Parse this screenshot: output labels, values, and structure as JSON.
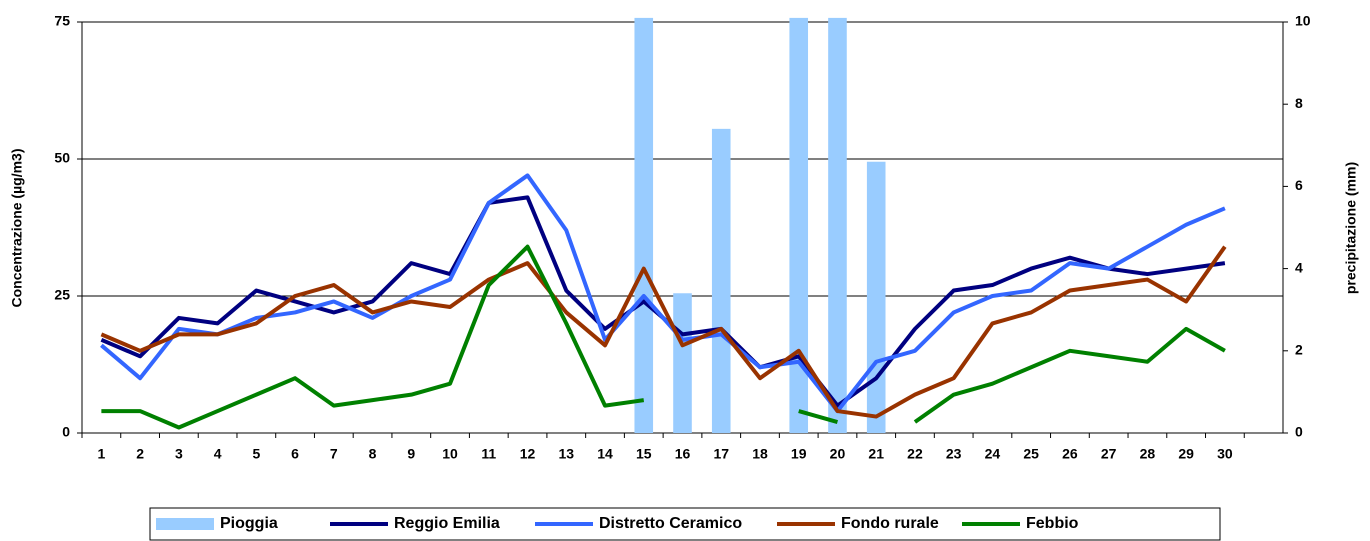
{
  "chart_data": {
    "type": "combo",
    "categories": [
      "1",
      "2",
      "3",
      "4",
      "5",
      "6",
      "7",
      "8",
      "9",
      "10",
      "11",
      "12",
      "13",
      "14",
      "15",
      "16",
      "17",
      "18",
      "19",
      "20",
      "21",
      "22",
      "23",
      "24",
      "25",
      "26",
      "27",
      "28",
      "29",
      "30",
      null
    ],
    "ylabel": "Concentrazione (µg/m3)",
    "y2label": "precipitazione (mm)",
    "ylim": [
      0,
      75
    ],
    "yticks": [
      0,
      25,
      50,
      75
    ],
    "y2lim": [
      0,
      10
    ],
    "y2ticks": [
      0,
      2,
      4,
      6,
      8,
      10
    ],
    "grid": true,
    "legend": "bottom",
    "series": [
      {
        "name": "Pioggia",
        "type": "bar",
        "axis": "y2",
        "color": "#99ccff",
        "values": [
          null,
          null,
          null,
          null,
          null,
          null,
          null,
          null,
          null,
          null,
          null,
          null,
          null,
          null,
          10.1,
          3.4,
          7.4,
          null,
          10.1,
          10.1,
          6.6,
          null,
          null,
          null,
          null,
          null,
          null,
          null,
          null,
          null,
          null
        ]
      },
      {
        "name": "Reggio Emilia",
        "type": "line",
        "color": "#000080",
        "values": [
          17,
          14,
          21,
          20,
          26,
          24,
          22,
          24,
          31,
          29,
          42,
          43,
          26,
          19,
          24,
          18,
          19,
          12,
          14,
          5,
          10,
          19,
          26,
          27,
          30,
          32,
          30,
          29,
          30,
          31,
          null
        ]
      },
      {
        "name": "Distretto Ceramico",
        "type": "line",
        "color": "#3366ff",
        "values": [
          16,
          10,
          19,
          18,
          21,
          22,
          24,
          21,
          25,
          28,
          42,
          47,
          37,
          17,
          25,
          17,
          18,
          12,
          13,
          4,
          13,
          15,
          22,
          25,
          26,
          31,
          30,
          34,
          38,
          41,
          null
        ]
      },
      {
        "name": "Fondo rurale",
        "type": "line",
        "color": "#993300",
        "values": [
          18,
          15,
          18,
          18,
          20,
          25,
          27,
          22,
          24,
          23,
          28,
          31,
          22,
          16,
          30,
          16,
          19,
          10,
          15,
          4,
          3,
          7,
          10,
          20,
          22,
          26,
          27,
          28,
          24,
          34,
          null
        ]
      },
      {
        "name": "Febbio",
        "type": "line",
        "color": "#008000",
        "values": [
          4,
          4,
          1,
          4,
          7,
          10,
          5,
          6,
          7,
          9,
          27,
          34,
          20,
          5,
          6,
          null,
          null,
          null,
          4,
          2,
          null,
          2,
          7,
          9,
          12,
          15,
          14,
          13,
          19,
          15,
          null
        ]
      }
    ]
  }
}
